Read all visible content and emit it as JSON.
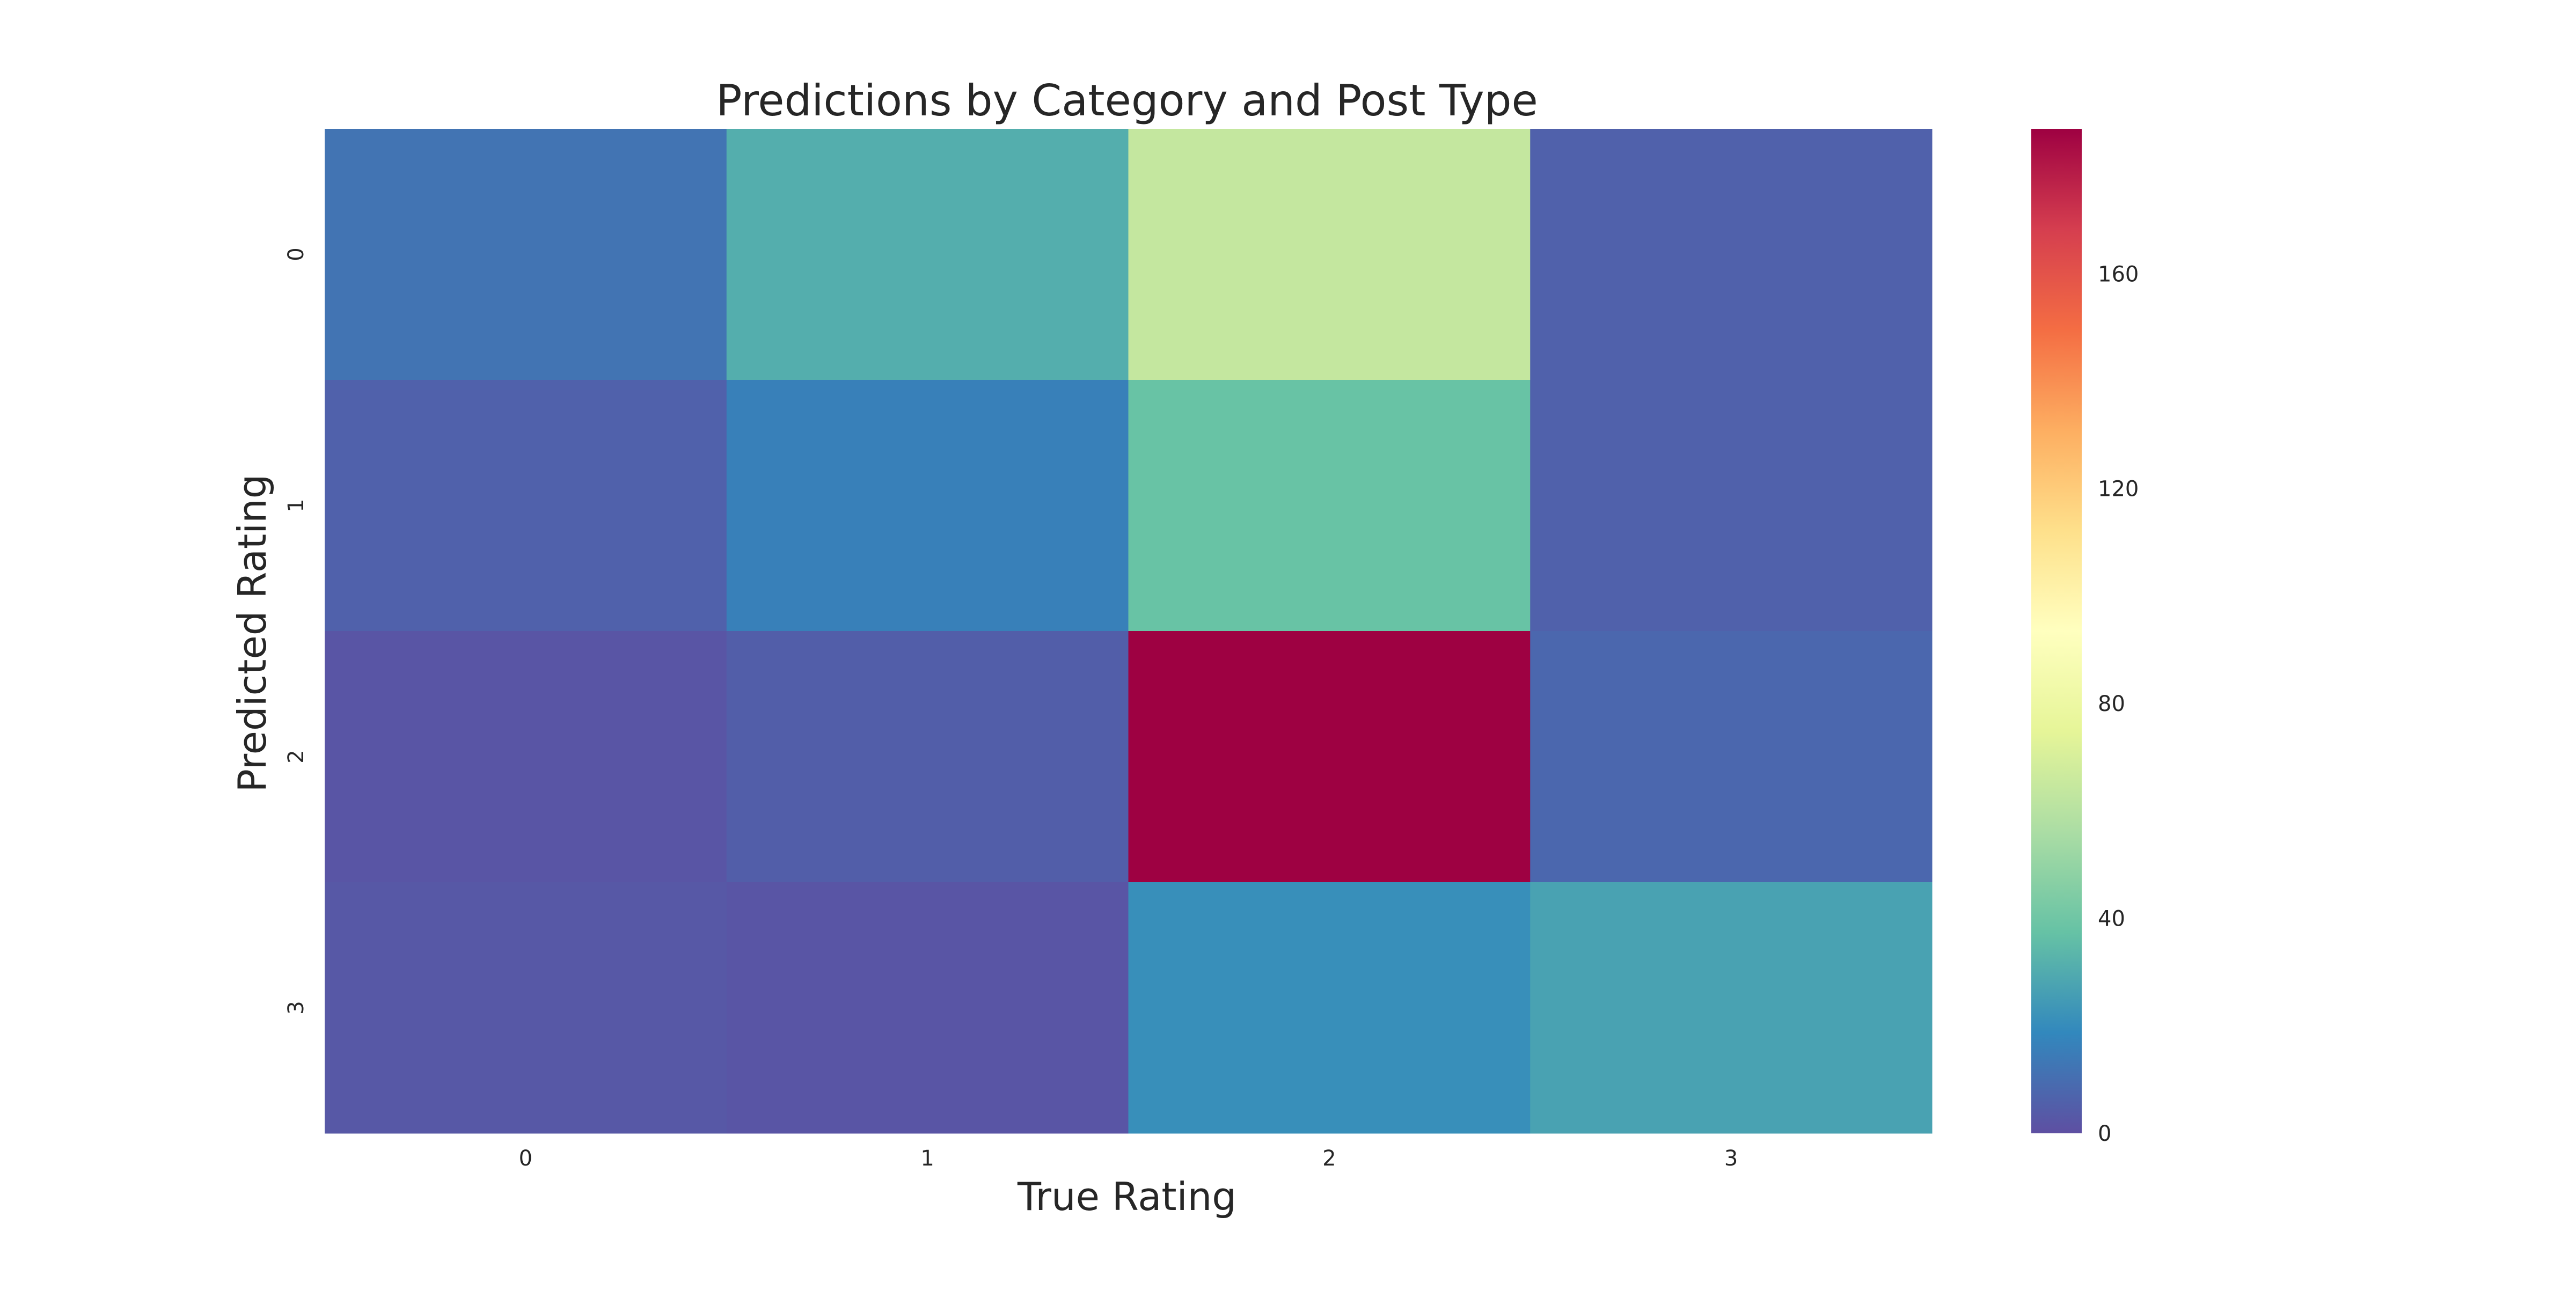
{
  "chart_data": {
    "type": "heatmap",
    "title": "Predictions by Category and Post Type",
    "xlabel": "True Rating",
    "ylabel": "Predicted Rating",
    "x_categories": [
      "0",
      "1",
      "2",
      "3"
    ],
    "y_categories": [
      "0",
      "1",
      "2",
      "3"
    ],
    "values": [
      [
        12,
        31,
        64,
        6
      ],
      [
        6,
        16,
        38,
        6
      ],
      [
        2,
        5,
        187,
        8
      ],
      [
        3,
        2,
        21,
        27
      ]
    ],
    "colorbar": {
      "colormap": "Spectral_r",
      "range": [
        0,
        187
      ],
      "ticks": [
        0,
        40,
        80,
        120,
        160
      ],
      "tick_labels": [
        "0",
        "40",
        "80",
        "120",
        "160"
      ]
    },
    "grid": false
  }
}
